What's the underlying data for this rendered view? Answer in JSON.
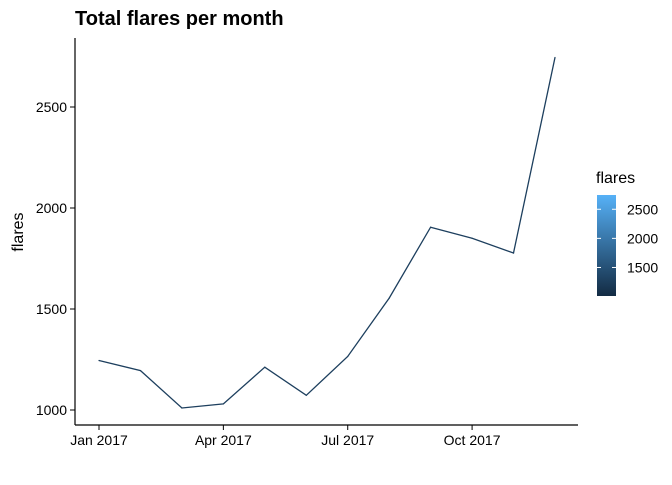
{
  "chart_data": {
    "type": "line",
    "title": "Total flares per month",
    "xlabel": "",
    "ylabel": "flares",
    "x": [
      "2017-01",
      "2017-02",
      "2017-03",
      "2017-04",
      "2017-05",
      "2017-06",
      "2017-07",
      "2017-08",
      "2017-09",
      "2017-10",
      "2017-11",
      "2017-12"
    ],
    "values": [
      1245,
      1195,
      1010,
      1030,
      1212,
      1073,
      1265,
      1554,
      1905,
      1850,
      1777,
      2745
    ],
    "ylim": [
      1000,
      2750
    ],
    "xlim": [
      "2017-01",
      "2017-12"
    ],
    "x_ticks": [
      {
        "at": "2017-01",
        "label": "Jan 2017"
      },
      {
        "at": "2017-04",
        "label": "Apr 2017"
      },
      {
        "at": "2017-07",
        "label": "Jul 2017"
      },
      {
        "at": "2017-10",
        "label": "Oct 2017"
      }
    ],
    "y_ticks": [
      {
        "value": 1000,
        "label": "1000"
      },
      {
        "value": 1500,
        "label": "1500"
      },
      {
        "value": 2000,
        "label": "2000"
      },
      {
        "value": 2500,
        "label": "2500"
      }
    ],
    "grid": false,
    "legend": {
      "title": "flares",
      "placement": "right",
      "type": "colorbar",
      "ticks": [
        {
          "value": 1500,
          "label": "1500"
        },
        {
          "value": 2000,
          "label": "2000"
        },
        {
          "value": 2500,
          "label": "2500"
        }
      ],
      "color_low": "#132B43",
      "color_high": "#56B1F7"
    }
  }
}
